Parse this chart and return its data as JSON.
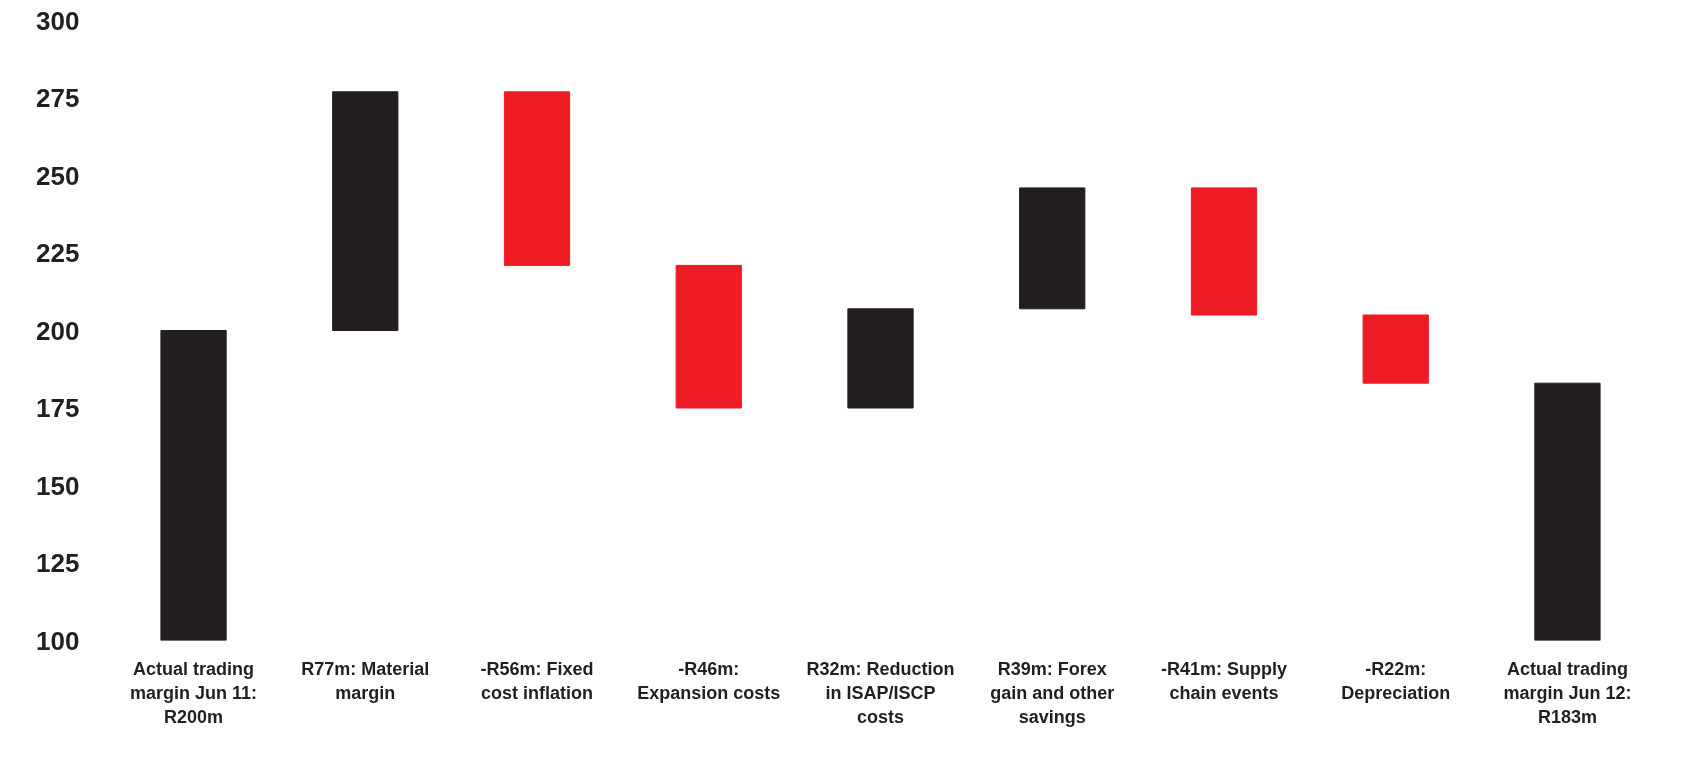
{
  "chart_data": {
    "type": "bar",
    "categories": [
      "Actual trading margin Jun 11: R200m",
      "R77m: Material margin",
      "-R56m: Fixed cost inflation",
      "-R46m: Expansion costs",
      "R32m: Reduction in ISAP/ISCP costs",
      "R39m: Forex gain and other savings",
      "-R41m: Supply chain events",
      "-R22m: Depreciation",
      "Actual trading margin Jun 12: R183m"
    ],
    "values": [
      100,
      77,
      -56,
      -46,
      32,
      39,
      -41,
      -22,
      83
    ],
    "base": [
      100,
      200,
      277,
      221,
      175,
      207,
      246,
      205,
      100
    ],
    "colors": [
      "#231f20",
      "#231f20",
      "#ed1c24",
      "#ed1c24",
      "#231f20",
      "#231f20",
      "#ed1c24",
      "#ed1c24",
      "#231f20"
    ],
    "ylim": [
      100,
      300
    ],
    "yticks": [
      100,
      125,
      150,
      175,
      200,
      225,
      250,
      275,
      300
    ],
    "grid": false
  }
}
